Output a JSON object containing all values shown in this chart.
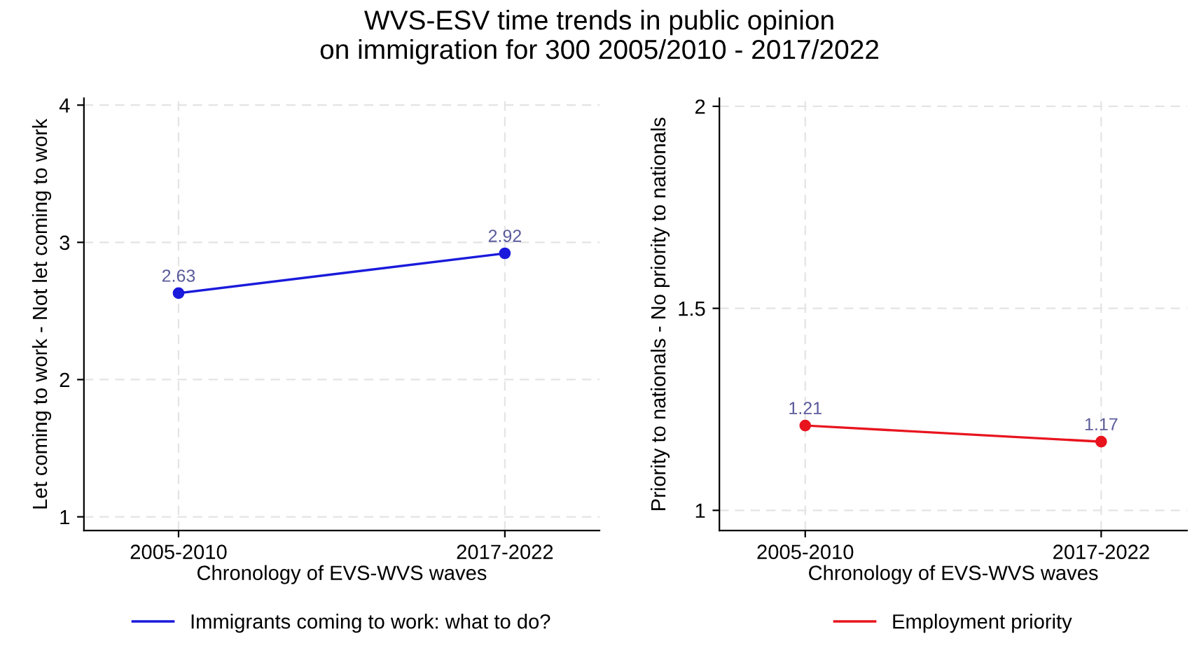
{
  "chart_data": [
    {
      "type": "line",
      "title": "WVS-ESV time trends in public opinion\non immigration for 300 2005/2010 - 2017/2022",
      "xlabel": "Chronology of EVS-WVS waves",
      "ylabel": "Let coming to work - Not let coming to work",
      "categories": [
        "2005-2010",
        "2017-2022"
      ],
      "series": [
        {
          "name": "Immigrants coming to work: what to do?",
          "color": "#1a1adc",
          "values": [
            2.63,
            2.92
          ]
        }
      ],
      "ylim": [
        0.9,
        4.05
      ],
      "yticks": [
        1,
        2,
        3,
        4
      ],
      "grid": true,
      "legend": "bottom",
      "marker": "circle",
      "line_style": "solid",
      "data_labels": true
    },
    {
      "type": "line",
      "xlabel": "Chronology of EVS-WVS waves",
      "ylabel": "Priority to nationals - No priority to nationals",
      "categories": [
        "2005-2010",
        "2017-2022"
      ],
      "series": [
        {
          "name": "Employment priority",
          "color": "#e8141e",
          "values": [
            1.21,
            1.17
          ]
        }
      ],
      "ylim": [
        0.95,
        2.02
      ],
      "yticks": [
        1,
        1.5,
        2
      ],
      "grid": true,
      "legend": "bottom",
      "marker": "circle",
      "line_style": "solid",
      "data_labels": true
    }
  ]
}
